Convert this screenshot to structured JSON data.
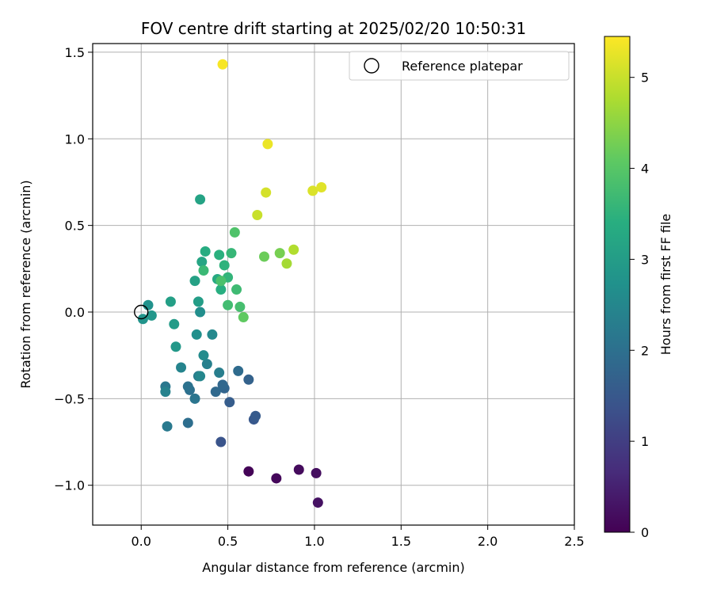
{
  "chart_data": {
    "type": "scatter",
    "title": "FOV centre drift starting at 2025/02/20 10:50:31",
    "xlabel": "Angular distance from reference (arcmin)",
    "ylabel": "Rotation from reference (arcmin)",
    "xlim": [
      -0.28,
      2.5
    ],
    "ylim": [
      -1.23,
      1.55
    ],
    "xticks": [
      0.0,
      0.5,
      1.0,
      1.5,
      2.0,
      2.5
    ],
    "xtick_labels": [
      "0.0",
      "0.5",
      "1.0",
      "1.5",
      "2.0",
      "2.5"
    ],
    "yticks": [
      -1.0,
      -0.5,
      0.0,
      0.5,
      1.0,
      1.5
    ],
    "ytick_labels": [
      "−1.0",
      "−0.5",
      "0.0",
      "0.5",
      "1.0",
      "1.5"
    ],
    "grid": true,
    "colormap": "viridis",
    "colorbar": {
      "label": "Hours from first FF file",
      "range": [
        0,
        5.45
      ],
      "ticks": [
        0,
        1,
        2,
        3,
        4,
        5
      ],
      "tick_labels": [
        "0",
        "1",
        "2",
        "3",
        "4",
        "5"
      ]
    },
    "legend": {
      "placement": "top-right",
      "entries": [
        {
          "label": "Reference platepar",
          "marker": "open-circle"
        }
      ]
    },
    "reference_point": {
      "x": 0.0,
      "y": 0.0
    },
    "points": [
      {
        "x": 0.62,
        "y": -0.92,
        "h": 0.05
      },
      {
        "x": 0.78,
        "y": -0.96,
        "h": 0.1
      },
      {
        "x": 0.91,
        "y": -0.91,
        "h": 0.15
      },
      {
        "x": 1.01,
        "y": -0.93,
        "h": 0.2
      },
      {
        "x": 1.02,
        "y": -1.1,
        "h": 0.25
      },
      {
        "x": 0.46,
        "y": -0.75,
        "h": 1.4
      },
      {
        "x": 0.65,
        "y": -0.62,
        "h": 1.5
      },
      {
        "x": 0.66,
        "y": -0.6,
        "h": 1.55
      },
      {
        "x": 0.51,
        "y": -0.52,
        "h": 1.6
      },
      {
        "x": 0.62,
        "y": -0.39,
        "h": 1.7
      },
      {
        "x": 0.48,
        "y": -0.44,
        "h": 1.75
      },
      {
        "x": 0.47,
        "y": -0.42,
        "h": 1.8
      },
      {
        "x": 0.43,
        "y": -0.46,
        "h": 1.85
      },
      {
        "x": 0.56,
        "y": -0.34,
        "h": 1.9
      },
      {
        "x": 0.27,
        "y": -0.64,
        "h": 1.95
      },
      {
        "x": 0.28,
        "y": -0.45,
        "h": 2.0
      },
      {
        "x": 0.27,
        "y": -0.43,
        "h": 2.05
      },
      {
        "x": 0.31,
        "y": -0.5,
        "h": 2.1
      },
      {
        "x": 0.14,
        "y": -0.43,
        "h": 2.15
      },
      {
        "x": 0.15,
        "y": -0.66,
        "h": 2.2
      },
      {
        "x": 0.33,
        "y": -0.37,
        "h": 2.25
      },
      {
        "x": 0.45,
        "y": -0.35,
        "h": 2.3
      },
      {
        "x": 0.38,
        "y": -0.3,
        "h": 2.35
      },
      {
        "x": 0.14,
        "y": -0.46,
        "h": 2.4
      },
      {
        "x": 0.23,
        "y": -0.32,
        "h": 2.45
      },
      {
        "x": 0.34,
        "y": -0.37,
        "h": 2.5
      },
      {
        "x": 0.41,
        "y": -0.13,
        "h": 2.55
      },
      {
        "x": 0.36,
        "y": -0.25,
        "h": 2.6
      },
      {
        "x": 0.34,
        "y": 0.0,
        "h": 2.65
      },
      {
        "x": 0.32,
        "y": -0.13,
        "h": 2.7
      },
      {
        "x": 0.04,
        "y": 0.04,
        "h": 2.75
      },
      {
        "x": 0.01,
        "y": -0.04,
        "h": 2.8
      },
      {
        "x": 0.06,
        "y": -0.02,
        "h": 2.85
      },
      {
        "x": 0.2,
        "y": -0.2,
        "h": 2.9
      },
      {
        "x": 0.19,
        "y": -0.07,
        "h": 2.95
      },
      {
        "x": 0.33,
        "y": 0.06,
        "h": 3.0
      },
      {
        "x": 0.17,
        "y": 0.06,
        "h": 3.05
      },
      {
        "x": 0.31,
        "y": 0.18,
        "h": 3.1
      },
      {
        "x": 0.34,
        "y": 0.65,
        "h": 3.15
      },
      {
        "x": 0.35,
        "y": 0.29,
        "h": 3.2
      },
      {
        "x": 0.44,
        "y": 0.19,
        "h": 3.3
      },
      {
        "x": 0.37,
        "y": 0.35,
        "h": 3.35
      },
      {
        "x": 0.46,
        "y": 0.13,
        "h": 3.4
      },
      {
        "x": 0.45,
        "y": 0.33,
        "h": 3.45
      },
      {
        "x": 0.48,
        "y": 0.27,
        "h": 3.5
      },
      {
        "x": 0.5,
        "y": 0.2,
        "h": 3.55
      },
      {
        "x": 0.52,
        "y": 0.34,
        "h": 3.6
      },
      {
        "x": 0.36,
        "y": 0.24,
        "h": 3.65
      },
      {
        "x": 0.55,
        "y": 0.13,
        "h": 3.7
      },
      {
        "x": 0.5,
        "y": 0.04,
        "h": 3.75
      },
      {
        "x": 0.57,
        "y": 0.03,
        "h": 3.8
      },
      {
        "x": 0.46,
        "y": 0.18,
        "h": 3.85
      },
      {
        "x": 0.54,
        "y": 0.46,
        "h": 3.9
      },
      {
        "x": 0.59,
        "y": -0.03,
        "h": 4.1
      },
      {
        "x": 0.71,
        "y": 0.32,
        "h": 4.2
      },
      {
        "x": 0.8,
        "y": 0.34,
        "h": 4.3
      },
      {
        "x": 0.84,
        "y": 0.28,
        "h": 4.7
      },
      {
        "x": 0.88,
        "y": 0.36,
        "h": 4.8
      },
      {
        "x": 0.67,
        "y": 0.56,
        "h": 5.0
      },
      {
        "x": 0.72,
        "y": 0.69,
        "h": 5.1
      },
      {
        "x": 0.99,
        "y": 0.7,
        "h": 5.15
      },
      {
        "x": 1.04,
        "y": 0.72,
        "h": 5.2
      },
      {
        "x": 0.73,
        "y": 0.97,
        "h": 5.3
      },
      {
        "x": 0.47,
        "y": 1.43,
        "h": 5.4
      }
    ]
  }
}
